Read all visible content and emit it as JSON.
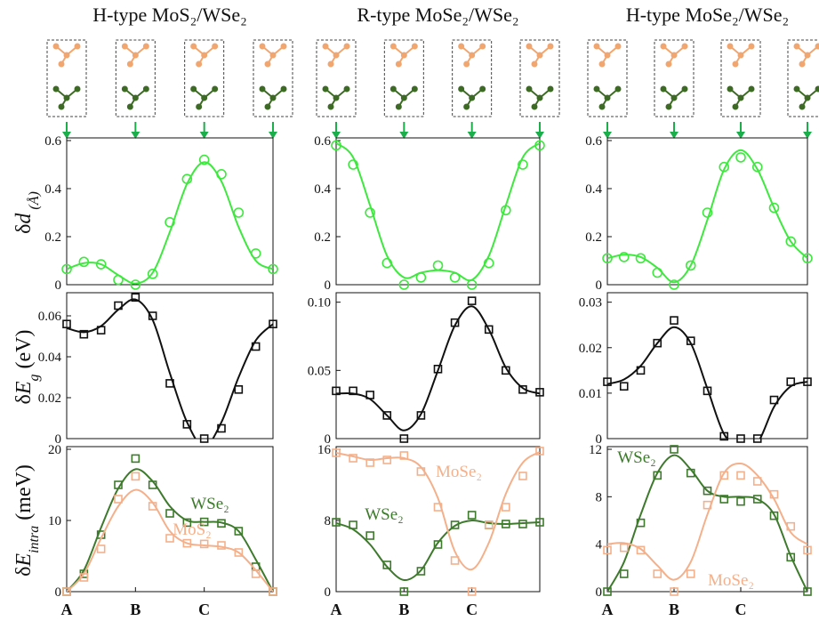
{
  "chart_data": [
    {
      "type": "line",
      "title": "H-type MoS₂/WSe₂",
      "ylabel": [
        "δ",
        "d",
        " (Å)"
      ],
      "marker": "circle",
      "x": [
        0,
        0.25,
        0.5,
        0.75,
        1,
        1.25,
        1.5,
        1.75,
        2,
        2.25,
        2.5,
        2.75,
        3
      ],
      "xlim": [
        0,
        3
      ],
      "ylim": [
        0,
        0.6
      ],
      "yticks": [
        0,
        0.2,
        0.4,
        0.6
      ],
      "series": [
        {
          "color": "#3ee83e",
          "values": [
            0.065,
            0.095,
            0.085,
            0.02,
            0,
            0.045,
            0.26,
            0.44,
            0.52,
            0.46,
            0.3,
            0.13,
            0.065
          ],
          "fit": [
            0.065,
            0.09,
            0.085,
            0.04,
            0.005,
            0.05,
            0.22,
            0.42,
            0.51,
            0.43,
            0.24,
            0.1,
            0.065
          ]
        }
      ]
    },
    {
      "type": "line",
      "title": "R-type MoSe₂/WSe₂",
      "marker": "circle",
      "x": [
        0,
        0.25,
        0.5,
        0.75,
        1,
        1.25,
        1.5,
        1.75,
        2,
        2.25,
        2.5,
        2.75,
        3
      ],
      "xlim": [
        0,
        3
      ],
      "ylim": [
        0,
        0.6
      ],
      "yticks": [
        0,
        0.2,
        0.4,
        0.6
      ],
      "series": [
        {
          "color": "#3ee83e",
          "values": [
            0.58,
            0.5,
            0.3,
            0.09,
            0,
            0.03,
            0.08,
            0.03,
            0,
            0.09,
            0.31,
            0.5,
            0.58
          ],
          "fit": [
            0.59,
            0.53,
            0.33,
            0.12,
            0.03,
            0.05,
            0.06,
            0.05,
            0.02,
            0.12,
            0.33,
            0.53,
            0.59
          ]
        }
      ]
    },
    {
      "type": "line",
      "title": "H-type MoSe₂/WSe₂",
      "marker": "circle",
      "x": [
        0,
        0.25,
        0.5,
        0.75,
        1,
        1.25,
        1.5,
        1.75,
        2,
        2.25,
        2.5,
        2.75,
        3
      ],
      "xlim": [
        0,
        3
      ],
      "ylim": [
        0,
        0.6
      ],
      "yticks": [
        0,
        0.2,
        0.4,
        0.6
      ],
      "series": [
        {
          "color": "#3ee83e",
          "values": [
            0.11,
            0.115,
            0.11,
            0.05,
            0,
            0.08,
            0.3,
            0.49,
            0.53,
            0.49,
            0.32,
            0.18,
            0.11
          ],
          "fit": [
            0.11,
            0.125,
            0.115,
            0.07,
            0.01,
            0.08,
            0.27,
            0.48,
            0.56,
            0.48,
            0.32,
            0.18,
            0.11
          ]
        }
      ]
    },
    {
      "type": "line",
      "ylabel": [
        "δ",
        "E",
        "g",
        " (eV)"
      ],
      "marker": "square",
      "x": [
        0,
        0.25,
        0.5,
        0.75,
        1,
        1.25,
        1.5,
        1.75,
        2,
        2.25,
        2.5,
        2.75,
        3
      ],
      "xlim": [
        0,
        3
      ],
      "ylim": [
        0,
        0.07
      ],
      "yticks": [
        0,
        0.02,
        0.04,
        0.06
      ],
      "series": [
        {
          "color": "#111111",
          "values": [
            0.056,
            0.051,
            0.053,
            0.065,
            0.069,
            0.06,
            0.027,
            0.007,
            0,
            0.005,
            0.024,
            0.045,
            0.056
          ],
          "fit": [
            0.054,
            0.052,
            0.055,
            0.063,
            0.068,
            0.058,
            0.032,
            0.008,
            -0.004,
            0.008,
            0.03,
            0.048,
            0.056
          ]
        }
      ]
    },
    {
      "type": "line",
      "marker": "square",
      "x": [
        0,
        0.25,
        0.5,
        0.75,
        1,
        1.25,
        1.5,
        1.75,
        2,
        2.25,
        2.5,
        2.75,
        3
      ],
      "xlim": [
        0,
        3
      ],
      "ylim": [
        0,
        0.105
      ],
      "yticks": [
        0,
        0.05,
        {
          "value": 0.1,
          "label": "0.10"
        }
      ],
      "series": [
        {
          "color": "#111111",
          "values": [
            0.035,
            0.035,
            0.032,
            0.017,
            0,
            0.017,
            0.051,
            0.085,
            0.101,
            0.08,
            0.05,
            0.036,
            0.034
          ],
          "fit": [
            0.033,
            0.033,
            0.029,
            0.017,
            0.006,
            0.018,
            0.05,
            0.083,
            0.097,
            0.08,
            0.052,
            0.037,
            0.033
          ]
        }
      ]
    },
    {
      "type": "line",
      "marker": "square",
      "x": [
        0,
        0.25,
        0.5,
        0.75,
        1,
        1.25,
        1.5,
        1.75,
        2,
        2.25,
        2.5,
        2.75,
        3
      ],
      "xlim": [
        0,
        3
      ],
      "ylim": [
        0,
        0.0315
      ],
      "yticks": [
        0,
        0.01,
        0.02,
        0.03
      ],
      "series": [
        {
          "color": "#111111",
          "values": [
            0.0125,
            0.0115,
            0.015,
            0.021,
            0.026,
            0.0215,
            0.0105,
            0.0005,
            0,
            0,
            0.0085,
            0.0125,
            0.0125
          ],
          "fit": [
            0.012,
            0.013,
            0.016,
            0.021,
            0.0245,
            0.021,
            0.011,
            0.001,
            -0.002,
            -0.001,
            0.007,
            0.0115,
            0.0125
          ]
        }
      ]
    },
    {
      "type": "line",
      "ylabel": [
        "δ",
        "E",
        "intra",
        " (meV)"
      ],
      "marker": "square",
      "x": [
        0,
        0.25,
        0.5,
        0.75,
        1,
        1.25,
        1.5,
        1.75,
        2,
        2.25,
        2.5,
        2.75,
        3
      ],
      "xlim": [
        0,
        3
      ],
      "ylim": [
        0,
        20
      ],
      "yticks": [
        0,
        10,
        20
      ],
      "xticks": [
        {
          "value": 0,
          "label": "A"
        },
        {
          "value": 1,
          "label": "B"
        },
        {
          "value": 2,
          "label": "C"
        }
      ],
      "series": [
        {
          "name": "WSe₂",
          "color": "#3d7a2c",
          "values": [
            0,
            2.5,
            8,
            15,
            18.7,
            15,
            11,
            9.7,
            9.8,
            9.6,
            8.5,
            3.5,
            0
          ],
          "fit": [
            0,
            3,
            9,
            14.5,
            17.2,
            15.5,
            12,
            10,
            9.8,
            9.7,
            8.5,
            4.5,
            0
          ]
        },
        {
          "name": "MoS₂",
          "color": "#f4b08a",
          "values": [
            0,
            2,
            6,
            13,
            16.2,
            12,
            7.5,
            6.8,
            6.7,
            6.5,
            5.5,
            2.5,
            0
          ],
          "fit": [
            0,
            2.5,
            7.5,
            12,
            14.3,
            12.5,
            8.5,
            6.8,
            6.5,
            6.3,
            5.5,
            3,
            0
          ]
        }
      ]
    },
    {
      "type": "line",
      "marker": "square",
      "x": [
        0,
        0.25,
        0.5,
        0.75,
        1,
        1.25,
        1.5,
        1.75,
        2,
        2.25,
        2.5,
        2.75,
        3
      ],
      "xlim": [
        0,
        3
      ],
      "ylim": [
        0,
        16
      ],
      "yticks": [
        0,
        8,
        16
      ],
      "xticks": [
        {
          "value": 0,
          "label": "A"
        },
        {
          "value": 1,
          "label": "B"
        },
        {
          "value": 2,
          "label": "C"
        }
      ],
      "series": [
        {
          "name": "WSe₂",
          "color": "#3d7a2c",
          "values": [
            7.8,
            7.5,
            6.3,
            3,
            0,
            2.3,
            5.3,
            7.5,
            8.6,
            7.5,
            7.6,
            7.6,
            7.8
          ],
          "fit": [
            7.7,
            7,
            5.3,
            2.8,
            1.3,
            2.4,
            5.5,
            7.4,
            8,
            7.7,
            7.6,
            7.7,
            7.8
          ]
        },
        {
          "name": "MoSe₂",
          "color": "#f4b08a",
          "values": [
            15.6,
            15,
            14.5,
            14.8,
            15.3,
            13.5,
            9.5,
            3.5,
            0,
            7.5,
            9.5,
            13,
            15.8
          ],
          "fit": [
            15.6,
            15.2,
            14.8,
            15,
            15,
            14,
            10.5,
            4.5,
            2.5,
            5.5,
            11,
            14.5,
            15.7
          ]
        }
      ]
    },
    {
      "type": "line",
      "marker": "square",
      "x": [
        0,
        0.25,
        0.5,
        0.75,
        1,
        1.25,
        1.5,
        1.75,
        2,
        2.25,
        2.5,
        2.75,
        3
      ],
      "xlim": [
        0,
        3
      ],
      "ylim": [
        0,
        12
      ],
      "yticks": [
        0,
        4,
        8,
        12
      ],
      "xticks": [
        {
          "value": 0,
          "label": "A"
        },
        {
          "value": 1,
          "label": "B"
        },
        {
          "value": 2,
          "label": "C"
        }
      ],
      "series": [
        {
          "name": "WSe₂",
          "color": "#3d7a2c",
          "values": [
            0,
            1.5,
            5.8,
            9.8,
            12,
            10,
            8.5,
            7.8,
            7.6,
            7.8,
            6.4,
            2.9,
            0
          ],
          "fit": [
            0,
            2.5,
            6.5,
            10,
            11.5,
            10.3,
            8.5,
            8,
            8,
            7.8,
            6.5,
            3,
            0
          ]
        },
        {
          "name": "MoSe₂",
          "color": "#f4b08a",
          "values": [
            3.5,
            3.7,
            3.5,
            1.5,
            0,
            1.5,
            7.3,
            9.8,
            9.8,
            9.3,
            8.2,
            5.5,
            3.5
          ],
          "fit": [
            4,
            4.1,
            3.6,
            2.2,
            1,
            2.5,
            6.5,
            10,
            10.8,
            9.8,
            7.8,
            5,
            4
          ]
        }
      ]
    }
  ]
}
